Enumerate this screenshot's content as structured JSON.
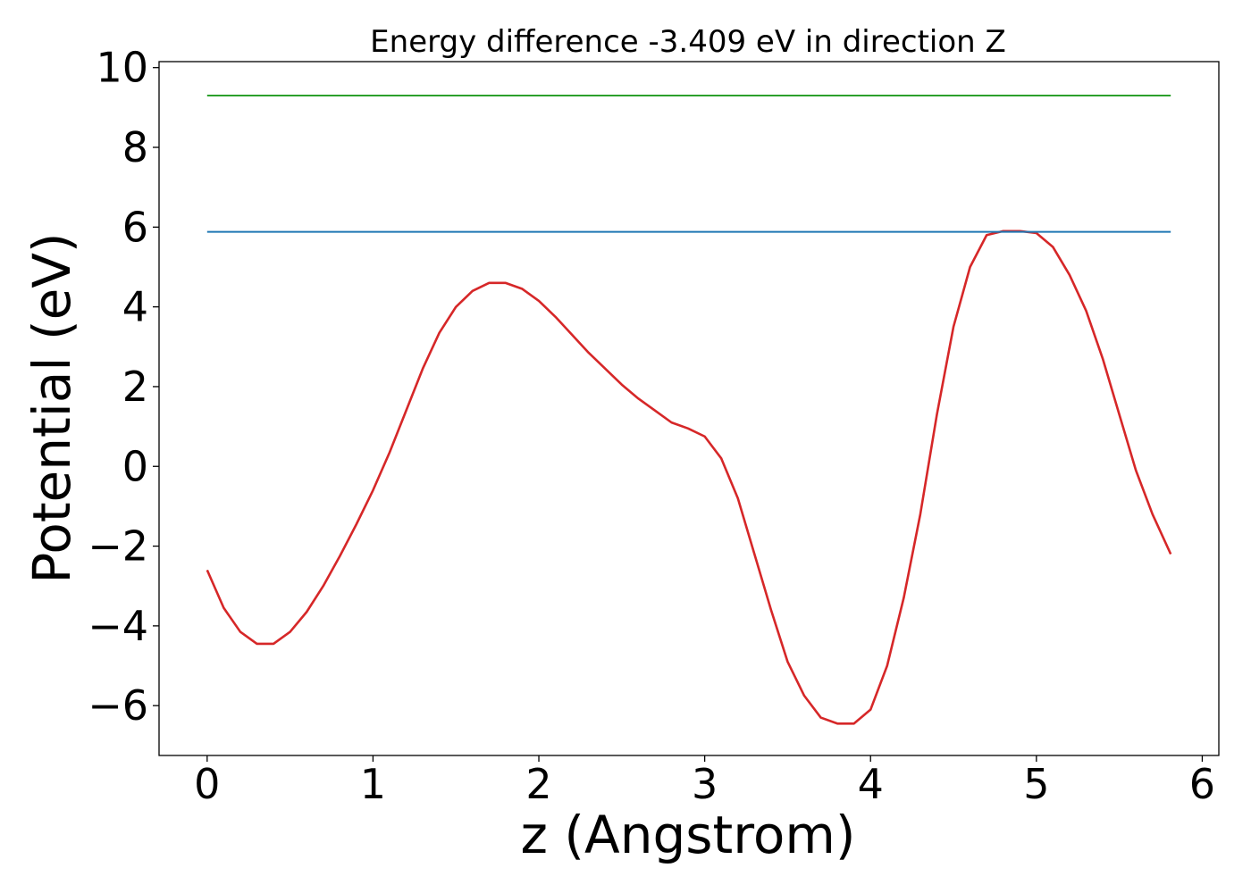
{
  "chart_data": {
    "type": "line",
    "title": "Energy difference -3.409 eV in direction Z",
    "xlabel": "z (Angstrom)",
    "ylabel": "Potential (eV)",
    "xlim": [
      -0.29,
      6.1
    ],
    "ylim": [
      -7.25,
      10.15
    ],
    "xticks": [
      0,
      1,
      2,
      3,
      4,
      5,
      6
    ],
    "xtick_labels": [
      "0",
      "1",
      "2",
      "3",
      "4",
      "5",
      "6"
    ],
    "yticks": [
      -6,
      -4,
      -2,
      0,
      2,
      4,
      6,
      8,
      10
    ],
    "ytick_labels": [
      "−6",
      "−4",
      "−2",
      "0",
      "2",
      "4",
      "6",
      "8",
      "10"
    ],
    "grid": false,
    "series": [
      {
        "color": "#d62728",
        "x": [
          0.0,
          0.1,
          0.2,
          0.3,
          0.4,
          0.5,
          0.6,
          0.7,
          0.8,
          0.9,
          1.0,
          1.1,
          1.2,
          1.3,
          1.4,
          1.5,
          1.6,
          1.7,
          1.8,
          1.9,
          2.0,
          2.1,
          2.2,
          2.3,
          2.4,
          2.5,
          2.6,
          2.7,
          2.8,
          2.9,
          3.0,
          3.1,
          3.2,
          3.3,
          3.4,
          3.5,
          3.6,
          3.7,
          3.8,
          3.9,
          4.0,
          4.1,
          4.2,
          4.3,
          4.4,
          4.5,
          4.6,
          4.7,
          4.8,
          4.9,
          5.0,
          5.1,
          5.2,
          5.3,
          5.4,
          5.5,
          5.6,
          5.7,
          5.81
        ],
        "y": [
          -2.6,
          -3.55,
          -4.15,
          -4.45,
          -4.45,
          -4.15,
          -3.65,
          -3.0,
          -2.25,
          -1.45,
          -0.6,
          0.35,
          1.4,
          2.45,
          3.35,
          4.0,
          4.4,
          4.6,
          4.6,
          4.45,
          4.15,
          3.75,
          3.3,
          2.85,
          2.45,
          2.05,
          1.7,
          1.4,
          1.1,
          0.95,
          0.75,
          0.2,
          -0.8,
          -2.2,
          -3.6,
          -4.9,
          -5.75,
          -6.3,
          -6.45,
          -6.45,
          -6.1,
          -5.0,
          -3.3,
          -1.2,
          1.3,
          3.5,
          5.0,
          5.8,
          5.9,
          5.9,
          5.85,
          5.5,
          4.8,
          3.9,
          2.7,
          1.3,
          -0.1,
          -1.2,
          -2.2
        ]
      },
      {
        "color": "#1f77b4",
        "x": [
          0.0,
          5.81
        ],
        "y": [
          5.88,
          5.88
        ]
      },
      {
        "color": "#2ca02c",
        "x": [
          0.0,
          5.81
        ],
        "y": [
          9.3,
          9.3
        ]
      }
    ]
  }
}
